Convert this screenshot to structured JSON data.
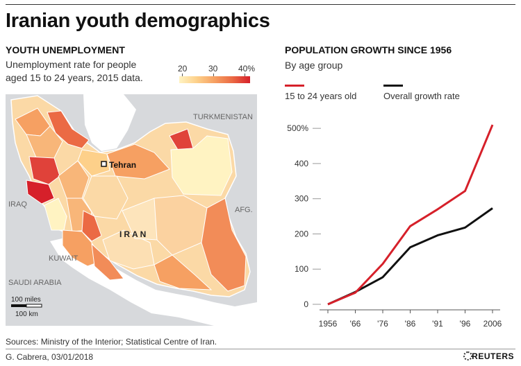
{
  "title": "Iranian youth demographics",
  "left": {
    "heading": "YOUTH UNEMPLOYMENT",
    "subtitle_line1": "Unemployment rate for people",
    "subtitle_line2": "aged 15 to 24 years, 2015 data.",
    "legend": {
      "labels": [
        "20",
        "30",
        "40%"
      ],
      "colors": [
        "#fff3c2",
        "#fdd08a",
        "#f6a062",
        "#eb6a44",
        "#d6202a"
      ]
    },
    "map_labels": {
      "turkmenistan": "TURKMENISTAN",
      "iraq": "IRAQ",
      "afg": "AFG.",
      "kuwait": "KUWAIT",
      "saudi": "SAUDI ARABIA",
      "tehran": "Tehran",
      "iran": "IRAN",
      "scale_miles": "100 miles",
      "scale_km": "100 km"
    }
  },
  "right": {
    "heading": "POPULATION GROWTH SINCE 1956",
    "subtitle": "By age group"
  },
  "chart_data": {
    "type": "line",
    "title": "POPULATION GROWTH SINCE 1956",
    "subtitle": "By age group",
    "categories": [
      "1956",
      "'66",
      "'76",
      "'86",
      "'91",
      "'96",
      "2006"
    ],
    "y_tick_labels": [
      "0",
      "100",
      "200",
      "300",
      "400",
      "500%"
    ],
    "y_ticks": [
      0,
      100,
      200,
      300,
      400,
      500
    ],
    "ylim": [
      0,
      520
    ],
    "series": [
      {
        "name": "15 to 24 years old",
        "color": "#d6202a",
        "values": [
          0,
          33,
          115,
          222,
          270,
          322,
          510
        ]
      },
      {
        "name": "Overall growth rate",
        "color": "#111111",
        "values": [
          0,
          35,
          77,
          162,
          196,
          218,
          273
        ]
      }
    ],
    "legend": "top",
    "grid": false
  },
  "footer": {
    "sources": "Sources: Ministry of the Interior; Statistical Centre of Iran.",
    "credit": "G. Cabrera, 03/01/2018",
    "brand": "REUTERS"
  }
}
